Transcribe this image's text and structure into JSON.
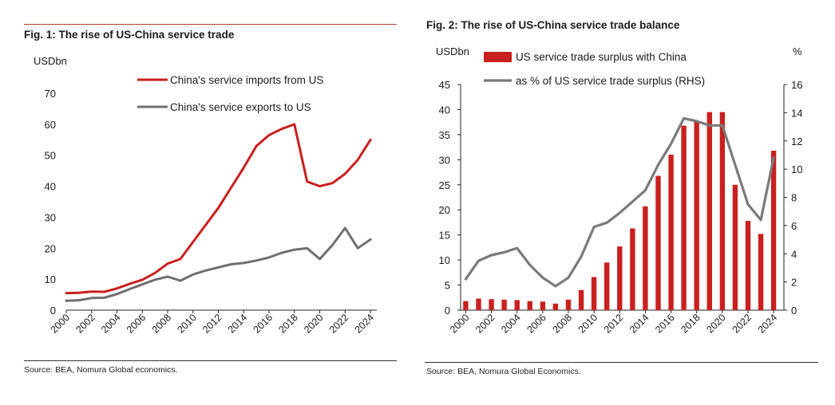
{
  "chart_data": [
    {
      "type": "line",
      "title": "Fig. 1: The rise of US-China service trade",
      "ylabel": "USDbn",
      "ylim": [
        0,
        70
      ],
      "yticks": [
        0,
        10,
        20,
        30,
        40,
        50,
        60,
        70
      ],
      "xlabels": [
        "2000",
        "2002",
        "2004",
        "2006",
        "2008",
        "2010",
        "2012",
        "2014",
        "2016",
        "2018",
        "2020",
        "2022",
        "2024"
      ],
      "x": [
        2000,
        2001,
        2002,
        2003,
        2004,
        2005,
        2006,
        2007,
        2008,
        2009,
        2010,
        2011,
        2012,
        2013,
        2014,
        2015,
        2016,
        2017,
        2018,
        2019,
        2020,
        2021,
        2022,
        2023,
        2024
      ],
      "series": [
        {
          "name": "China's service imports from US",
          "color": "#c8201e",
          "values": [
            5.5,
            5.6,
            6.0,
            5.9,
            7.0,
            8.5,
            9.8,
            12.0,
            15.0,
            16.5,
            22.0,
            27.5,
            33.0,
            39.5,
            46.0,
            53.0,
            56.5,
            58.5,
            60.0,
            41.5,
            40.0,
            41.0,
            44.0,
            48.5,
            55.0
          ]
        },
        {
          "name": "China's service exports to US",
          "color": "#6f6f6f",
          "values": [
            3.0,
            3.2,
            3.9,
            4.0,
            5.2,
            6.8,
            8.3,
            9.8,
            10.8,
            9.5,
            11.5,
            12.8,
            13.8,
            14.8,
            15.2,
            16.0,
            17.0,
            18.5,
            19.5,
            20.0,
            16.5,
            21.0,
            26.5,
            20.0,
            22.8
          ]
        }
      ],
      "legend": "top-right",
      "source": "Source: BEA, Nomura Global economics."
    },
    {
      "type": "bar",
      "title": "Fig. 2: The rise of US-China service trade balance",
      "ylabel": "USDbn",
      "ylabel_right": "%",
      "ylim": [
        0,
        45
      ],
      "ylim_right": [
        0,
        16
      ],
      "yticks": [
        0,
        5,
        10,
        15,
        20,
        25,
        30,
        35,
        40,
        45
      ],
      "yticks_right": [
        0,
        2,
        4,
        6,
        8,
        10,
        12,
        14,
        16
      ],
      "xlabels": [
        "2000",
        "2002",
        "2004",
        "2006",
        "2008",
        "2010",
        "2012",
        "2014",
        "2016",
        "2018",
        "2020",
        "2022",
        "2024"
      ],
      "x": [
        2000,
        2001,
        2002,
        2003,
        2004,
        2005,
        2006,
        2007,
        2008,
        2009,
        2010,
        2011,
        2012,
        2013,
        2014,
        2015,
        2016,
        2017,
        2018,
        2019,
        2020,
        2021,
        2022,
        2023,
        2024
      ],
      "series": [
        {
          "name": "US service trade surplus with China",
          "color": "#c8201e",
          "kind": "bar",
          "axis": "left",
          "values": [
            1.8,
            2.3,
            2.2,
            2.1,
            2.0,
            1.8,
            1.7,
            1.3,
            2.1,
            4.0,
            6.6,
            9.5,
            12.7,
            16.3,
            20.7,
            26.8,
            31.0,
            36.8,
            37.7,
            39.5,
            39.5,
            25.0,
            17.8,
            15.2,
            31.8
          ]
        },
        {
          "name": "as % of US service trade surplus (RHS)",
          "color": "#7a7a7a",
          "kind": "line",
          "axis": "right",
          "values": [
            2.2,
            3.5,
            3.9,
            4.1,
            4.4,
            3.2,
            2.3,
            1.7,
            2.3,
            3.8,
            5.9,
            6.2,
            6.9,
            7.7,
            8.5,
            10.3,
            11.8,
            13.6,
            13.4,
            13.1,
            13.1,
            10.3,
            7.5,
            6.4,
            10.8
          ]
        }
      ],
      "legend": "top-center",
      "source": "Source: BEA, Nomura Global Economics."
    }
  ]
}
